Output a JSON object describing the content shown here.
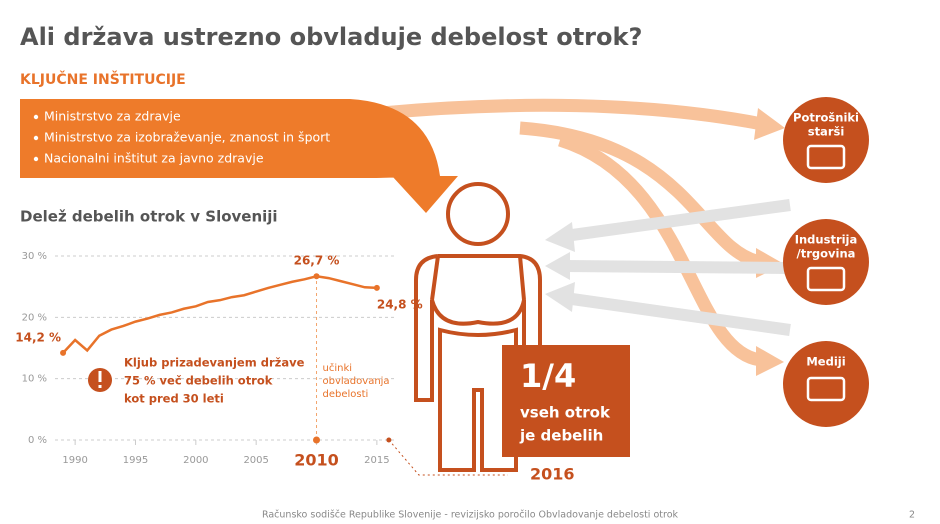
{
  "title": "Ali država ustrezno obvladuje debelost otrok?",
  "institutions": {
    "title": "KLJUČNE INŠTITUCIJE",
    "items": [
      "Ministrstvo za zdravje",
      "Ministrstvo za izobraževanje, znanost in šport",
      "Nacionalni inštitut za javno zdravje"
    ]
  },
  "targets": [
    {
      "lines": [
        "Potrošniki",
        "starši"
      ]
    },
    {
      "lines": [
        "Industrija",
        "/trgovina"
      ]
    },
    {
      "lines": [
        "Mediji"
      ]
    }
  ],
  "fact": {
    "fraction": "1/4",
    "lines": [
      "vseh otrok",
      "je debelih"
    ]
  },
  "chart_data": {
    "type": "line",
    "title": "Delež debelih otrok v Sloveniji",
    "x": [
      1989,
      1990,
      1991,
      1992,
      1993,
      1994,
      1995,
      1996,
      1997,
      1998,
      1999,
      2000,
      2001,
      2002,
      2003,
      2004,
      2005,
      2006,
      2007,
      2008,
      2009,
      2010,
      2011,
      2012,
      2013,
      2014,
      2015
    ],
    "series": [
      {
        "name": "Delež debelih otrok",
        "color": "#e8732a",
        "values": [
          14.2,
          16.3,
          14.6,
          17.0,
          18.0,
          18.6,
          19.3,
          19.8,
          20.4,
          20.8,
          21.4,
          21.8,
          22.5,
          22.8,
          23.3,
          23.6,
          24.2,
          24.8,
          25.3,
          25.8,
          26.2,
          26.7,
          26.4,
          25.9,
          25.4,
          24.9,
          24.8
        ],
        "value_labels": [
          "14,2 %",
          null,
          null,
          null,
          null,
          null,
          null,
          null,
          null,
          null,
          null,
          null,
          null,
          null,
          null,
          null,
          null,
          null,
          null,
          null,
          null,
          "26,7 %",
          null,
          null,
          null,
          null,
          "24,8 %"
        ]
      }
    ],
    "xlim": [
      1988,
      2017
    ],
    "xticks": [
      1990,
      1995,
      2000,
      2005,
      2010,
      2015
    ],
    "highlight": 2010,
    "ylim": [
      0,
      30
    ],
    "yticks": [
      {
        "value": 0,
        "label": "0 %"
      },
      {
        "value": 10,
        "label": "10 %"
      },
      {
        "value": 20,
        "label": "20 %"
      },
      {
        "value": 30,
        "label": "30 %"
      }
    ],
    "grid": true,
    "annotations": {
      "warning": [
        "Kljub prizadevanjem države",
        "75 % več debelih otrok",
        "kot pred 30 leti"
      ],
      "effect": [
        "učinki",
        "obvladovanja",
        "debelosti"
      ],
      "year": "2016"
    }
  },
  "footer": "Računsko sodišče Republike Slovenije - revizijsko poročilo Obvladovanje debelosti otrok",
  "page_number": "2"
}
